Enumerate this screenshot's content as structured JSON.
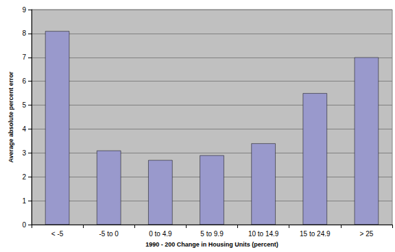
{
  "chart_data": {
    "type": "bar",
    "x_label": "1990 - 200 Change in Housing Units (percent)",
    "y_label": "Average absolute percent error",
    "categories": [
      "< -5",
      "-5 to 0",
      "0 to 4.9",
      "5 to 9.9",
      "10 to 14.9",
      "15 to 24.9",
      "> 25"
    ],
    "values": [
      8.1,
      3.1,
      2.7,
      2.9,
      3.4,
      5.5,
      7.0
    ],
    "color": "#9999cc",
    "ylim": [
      0,
      9
    ],
    "yticks": [
      0,
      1,
      2,
      3,
      4,
      5,
      6,
      7,
      8,
      9
    ],
    "grid": true
  }
}
